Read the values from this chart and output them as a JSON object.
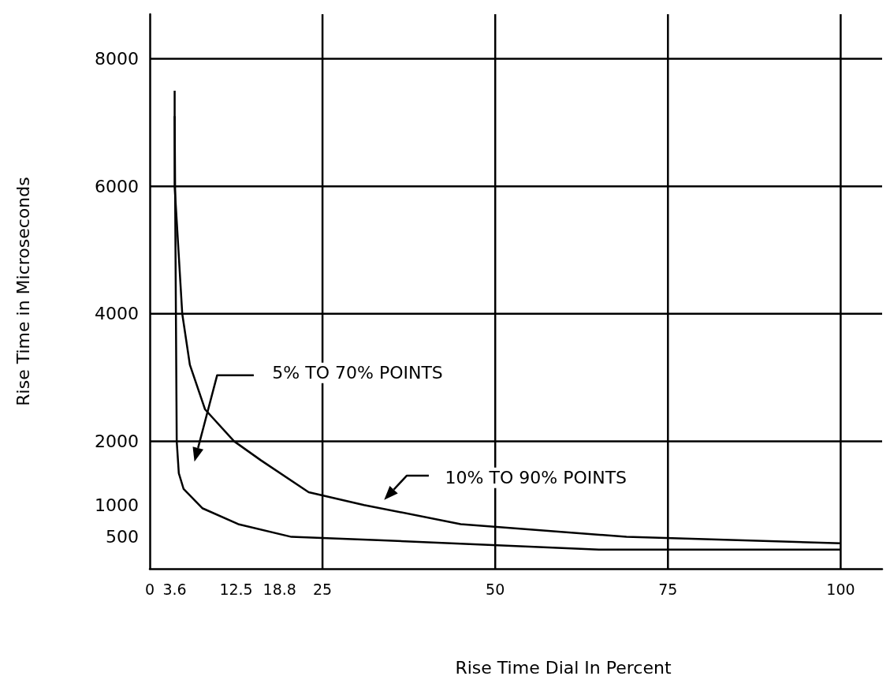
{
  "chart_data": {
    "type": "line",
    "xlabel": "Rise Time Dial In Percent",
    "ylabel": "Rise Time in Microseconds",
    "xlim": [
      0,
      106
    ],
    "xticks": [
      0,
      3.6,
      12.5,
      18.8,
      25,
      50,
      75,
      100
    ],
    "ylim": [
      0,
      8700
    ],
    "yticks": [
      500,
      1000,
      2000,
      4000,
      6000,
      8000
    ],
    "grid": true,
    "marker": "none",
    "line_style": "solid",
    "series": [
      {
        "color": "#000000",
        "x": [
          3.6,
          3.6,
          4.7,
          5.8,
          8.0,
          12.2,
          16.1,
          23.0,
          31,
          45,
          69,
          100
        ],
        "values": [
          7500,
          6000,
          4000,
          3200,
          2500,
          2000,
          1700,
          1200,
          1000,
          700,
          500,
          400
        ]
      },
      {
        "color": "#000000",
        "x": [
          3.6,
          3.9,
          4.2,
          4.9,
          7.6,
          12.8,
          20.5,
          33,
          65,
          100
        ],
        "values": [
          7100,
          2000,
          1500,
          1250,
          950,
          700,
          500,
          450,
          300,
          300
        ]
      }
    ],
    "annotations": [
      "5% TO 70% POINTS",
      "10% TO 90% POINTS"
    ]
  }
}
